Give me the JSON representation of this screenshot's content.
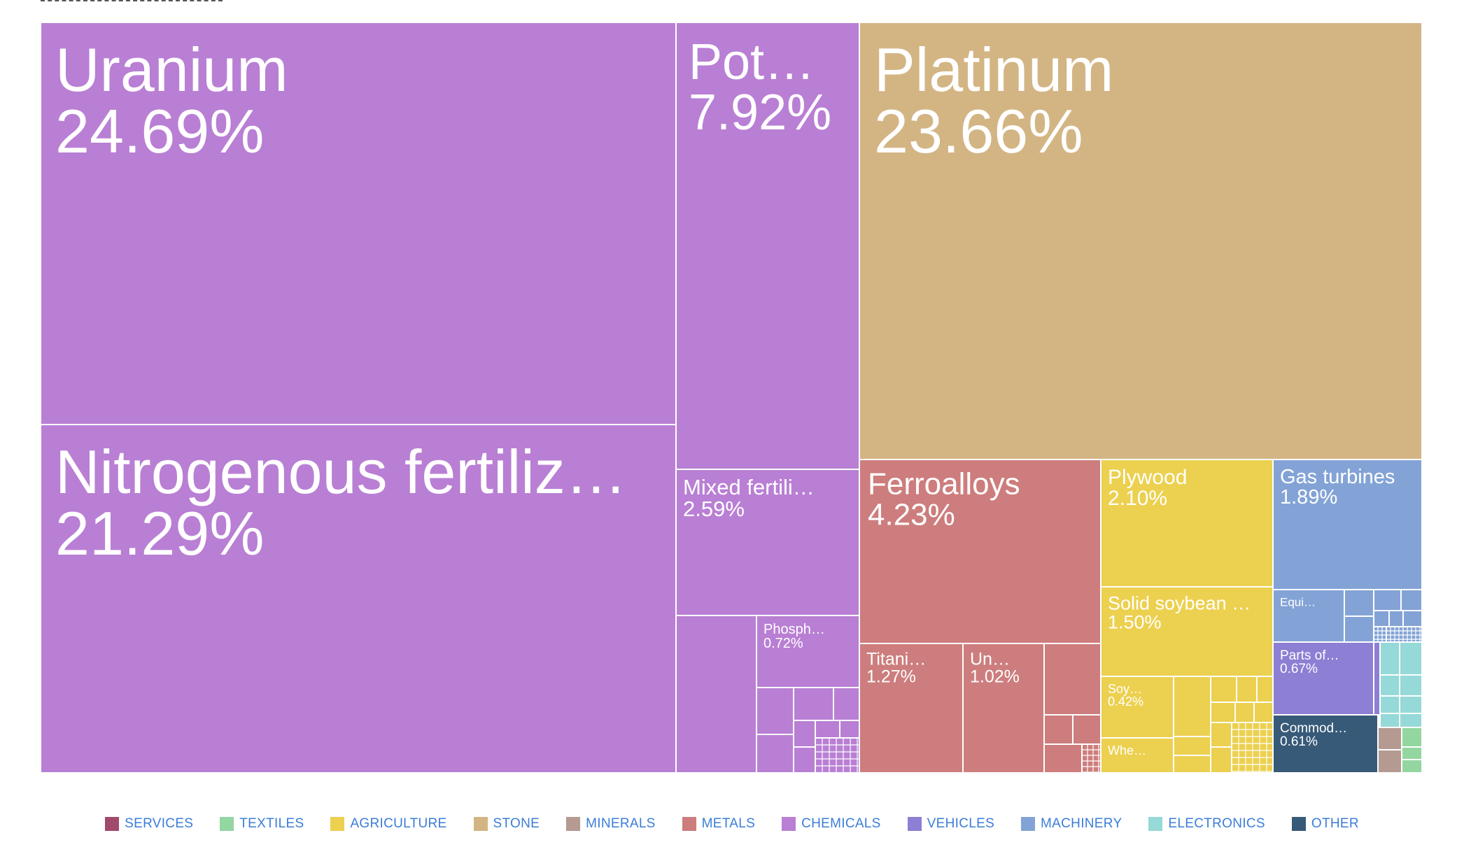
{
  "chart_data": {
    "type": "treemap",
    "title": "",
    "categories": [
      {
        "name": "SERVICES",
        "color": "#a14a6b"
      },
      {
        "name": "TEXTILES",
        "color": "#93d6a0"
      },
      {
        "name": "AGRICULTURE",
        "color": "#ecd04f"
      },
      {
        "name": "STONE",
        "color": "#d3b584"
      },
      {
        "name": "MINERALS",
        "color": "#b49a91"
      },
      {
        "name": "METALS",
        "color": "#cd7d7d"
      },
      {
        "name": "CHEMICALS",
        "color": "#b97fd4"
      },
      {
        "name": "VEHICLES",
        "color": "#8c7fd4"
      },
      {
        "name": "MACHINERY",
        "color": "#83a3d6"
      },
      {
        "name": "ELECTRONICS",
        "color": "#95d9d8"
      },
      {
        "name": "OTHER",
        "color": "#375a78"
      }
    ],
    "labeled_items": [
      {
        "name": "Uranium",
        "share": "24.69%",
        "category": "CHEMICALS"
      },
      {
        "name": "Nitrogenous fertiliz…",
        "share": "21.29%",
        "category": "CHEMICALS"
      },
      {
        "name": "Pot…",
        "share": "7.92%",
        "category": "CHEMICALS"
      },
      {
        "name": "Platinum",
        "share": "23.66%",
        "category": "STONE"
      },
      {
        "name": "Mixed fertili…",
        "share": "2.59%",
        "category": "CHEMICALS"
      },
      {
        "name": "Phosph…",
        "share": "0.72%",
        "category": "CHEMICALS"
      },
      {
        "name": "Ferroalloys",
        "share": "4.23%",
        "category": "METALS"
      },
      {
        "name": "Titani…",
        "share": "1.27%",
        "category": "METALS"
      },
      {
        "name": "Un…",
        "share": "1.02%",
        "category": "METALS"
      },
      {
        "name": "Plywood",
        "share": "2.10%",
        "category": "AGRICULTURE"
      },
      {
        "name": "Solid soybean …",
        "share": "1.50%",
        "category": "AGRICULTURE"
      },
      {
        "name": "Soy…",
        "share": "0.42%",
        "category": "AGRICULTURE"
      },
      {
        "name": "Whe…",
        "share": "",
        "category": "AGRICULTURE"
      },
      {
        "name": "Gas turbines",
        "share": "1.89%",
        "category": "MACHINERY"
      },
      {
        "name": "Equi…",
        "share": "",
        "category": "MACHINERY"
      },
      {
        "name": "Parts of…",
        "share": "0.67%",
        "category": "VEHICLES"
      },
      {
        "name": "Commod…",
        "share": "0.61%",
        "category": "OTHER"
      }
    ]
  }
}
